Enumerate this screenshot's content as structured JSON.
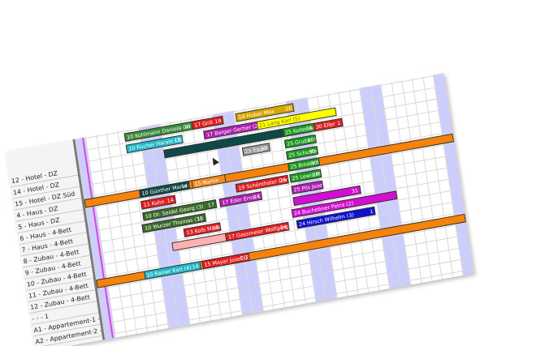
{
  "rows": [
    "12 - Hotel - DZ",
    "14 - Hotel - DZ",
    "15 - Hotel - DZ Süd",
    "4 - Haus - DZ",
    "5 - Haus - DZ",
    "6 - Haus - 4-Bett",
    "7 - Haus - 4-Bett",
    "8 - Zubau - 4-Bett",
    "9 - Zubau - 4-Bett",
    "10 - Zubau - 4-Bett",
    "11 - Zubau - 4-Bett",
    "12 - Zubau - 4-Bett",
    "- - - 1",
    "A1 - Appartement-1 - FW",
    "A2 - Appartement-2 - FW"
  ],
  "days": 35,
  "weekend_days": [
    0,
    6,
    7,
    13,
    14,
    20,
    21,
    27,
    28,
    34
  ],
  "today_day": 0.7,
  "bookings": [
    {
      "row": -5,
      "start": 23.5,
      "len": 8,
      "label": "25 Maier Helmut (6)",
      "right": "6",
      "color": "#22b8c8",
      "text": "#ffffff"
    },
    {
      "row": -4,
      "start": 15.2,
      "len": 8.5,
      "label": "20 Mustermann Max (4)",
      "right": "27",
      "color": "#000000",
      "text": "#ffffff"
    },
    {
      "row": -3,
      "start": 15.4,
      "len": 9.5,
      "label": "",
      "right": "",
      "color": "#f08a20",
      "text": "#ffffff"
    },
    {
      "row": -3,
      "start": 4.5,
      "len": 10,
      "label": "10 Samuel Peter (2)",
      "right": "20",
      "color": "#1c9a1c",
      "text": "#ffffff"
    },
    {
      "row": -2,
      "start": 15.2,
      "len": 5.5,
      "label": "14 Huber Max",
      "right": "26",
      "color": "#d8a800",
      "text": "#ffffff"
    },
    {
      "row": -2,
      "start": 11,
      "len": 3,
      "label": "17 Grill",
      "right": "19",
      "color": "#e02020",
      "text": "#ffffff"
    },
    {
      "row": -2,
      "start": 4.6,
      "len": 6.5,
      "label": "10 Kohlmann Daniela (4)",
      "right": "14",
      "color": "#3a8a3a",
      "text": "#ffffff"
    },
    {
      "row": -1,
      "start": 12,
      "len": 5.5,
      "label": "17 Berger Gertier (2)",
      "right": "",
      "color": "#b020b0",
      "text": "#ffffff"
    },
    {
      "row": -1,
      "start": 4.6,
      "len": 5.4,
      "label": "10 Fischer Harald (3)",
      "right": "15",
      "color": "#22b8c8",
      "text": "#ffffff"
    },
    {
      "row": -1,
      "start": 17,
      "len": 7.5,
      "label": "21 Lang Karl (5)",
      "right": "",
      "color": "#ffff00",
      "text": "#777700"
    },
    {
      "row": 0,
      "start": 8,
      "len": 14,
      "label": "",
      "right": "1",
      "color": "#104848",
      "text": "#ffffff"
    },
    {
      "row": 0,
      "start": 22.2,
      "len": 2.8,
      "label": "30 Eller",
      "right": "1",
      "color": "#e02020",
      "text": "#ffffff"
    },
    {
      "row": 0,
      "start": 19.3,
      "len": 3,
      "label": "25 Koller Anna (1)",
      "right": "30",
      "color": "#1c9a1c",
      "text": "#ffffff"
    },
    {
      "row": 1,
      "start": 19.3,
      "len": 3,
      "label": "25 Gruber Hubert (1)",
      "right": "30",
      "color": "#1c9a1c",
      "text": "#ffffff"
    },
    {
      "row": 1,
      "start": 15.3,
      "len": 2.6,
      "label": "23 Egger",
      "right": "25",
      "color": "#9a9a9a",
      "text": "#ffffff"
    },
    {
      "row": 2,
      "start": 19.3,
      "len": 3,
      "label": "25 Schuster Bernd (1)",
      "right": "30",
      "color": "#1c9a1c",
      "text": "#ffffff"
    },
    {
      "row": 3,
      "start": 0,
      "len": 35,
      "label": "",
      "right": "",
      "color": "#f5820a",
      "text": "#ffffff"
    },
    {
      "row": 3,
      "start": 19.3,
      "len": 3,
      "label": "25 Binder Ernst (1)",
      "right": "30",
      "color": "#1c9a1c",
      "text": "#ffffff"
    },
    {
      "row": 3,
      "start": 5.2,
      "len": 4.8,
      "label": "10 Günther Maria (4)",
      "right": "14",
      "color": "#104848",
      "text": "#ffffff"
    },
    {
      "row": 3,
      "start": 10.2,
      "len": 3.2,
      "label": "15 Martin",
      "right": "",
      "color": "#f08a20",
      "text": "#ffffff"
    },
    {
      "row": 4,
      "start": 5.2,
      "len": 3.3,
      "label": "11 Kuhn",
      "right": "14",
      "color": "#e02020",
      "text": "#ffffff"
    },
    {
      "row": 4,
      "start": 14.2,
      "len": 5,
      "label": "19 Schönthaler Daniela (5)",
      "right": "25",
      "color": "#e02020",
      "text": "#ffffff"
    },
    {
      "row": 4,
      "start": 19.3,
      "len": 3,
      "label": "25 Lewis Marlene (1)",
      "right": "30",
      "color": "#1c9a1c",
      "text": "#ffffff"
    },
    {
      "row": 5,
      "start": 19.3,
      "len": 3,
      "label": "25 Pils Josef (1)",
      "right": "",
      "color": "#b020b0",
      "text": "#ffffff"
    },
    {
      "row": 5,
      "start": 5.2,
      "len": 7,
      "label": "10 Dr. Seidel Georg (3)",
      "right": "17",
      "color": "#3a6a2a",
      "text": "#ffffff"
    },
    {
      "row": 5,
      "start": 12.5,
      "len": 4,
      "label": "17 Eder Ernst (2)",
      "right": "24",
      "color": "#b020b0",
      "text": "#ffffff"
    },
    {
      "row": 6,
      "start": 5,
      "len": 6,
      "label": "10 Wurzer Thomas (3)",
      "right": "16",
      "color": "#3a6a2a",
      "text": "#ffffff"
    },
    {
      "row": 6,
      "start": 19.3,
      "len": 6.4,
      "label": "",
      "right": "31",
      "color": "#d010d0",
      "text": "#ffffff"
    },
    {
      "row": 7,
      "start": 8.8,
      "len": 3.5,
      "label": "13 Kolb Maria (2)",
      "right": "18",
      "color": "#e02020",
      "text": "#ffffff"
    },
    {
      "row": 7,
      "start": 19,
      "len": 10,
      "label": "24 Buchebner Petra (2)",
      "right": "",
      "color": "#d010d0",
      "text": "#ffffff"
    },
    {
      "row": 8,
      "start": 7.5,
      "len": 6,
      "label": "",
      "right": "",
      "color": "#ffb0b0",
      "text": "#ffffff"
    },
    {
      "row": 8,
      "start": 19.3,
      "len": 7.5,
      "label": "24 Hirsch Wilhelm (3)",
      "right": "1",
      "color": "#1010d0",
      "text": "#ffffff"
    },
    {
      "row": 8,
      "start": 12.6,
      "len": 6,
      "label": "17 Gassmeier Wolfgang (4)",
      "right": "24",
      "color": "#e02020",
      "text": "#ffffff"
    },
    {
      "row": 10,
      "start": 0,
      "len": 35,
      "label": "",
      "right": "",
      "color": "#f5820a",
      "text": "#ffffff"
    },
    {
      "row": 10,
      "start": 4.5,
      "len": 5.4,
      "label": "10 Rainer Karl (4)",
      "right": "14",
      "color": "#22b8c8",
      "text": "#ffffff"
    },
    {
      "row": 10,
      "start": 10,
      "len": 4.5,
      "label": "15 Mayer Josef (2)",
      "right": "20",
      "color": "#e02020",
      "text": "#ffffff"
    }
  ]
}
